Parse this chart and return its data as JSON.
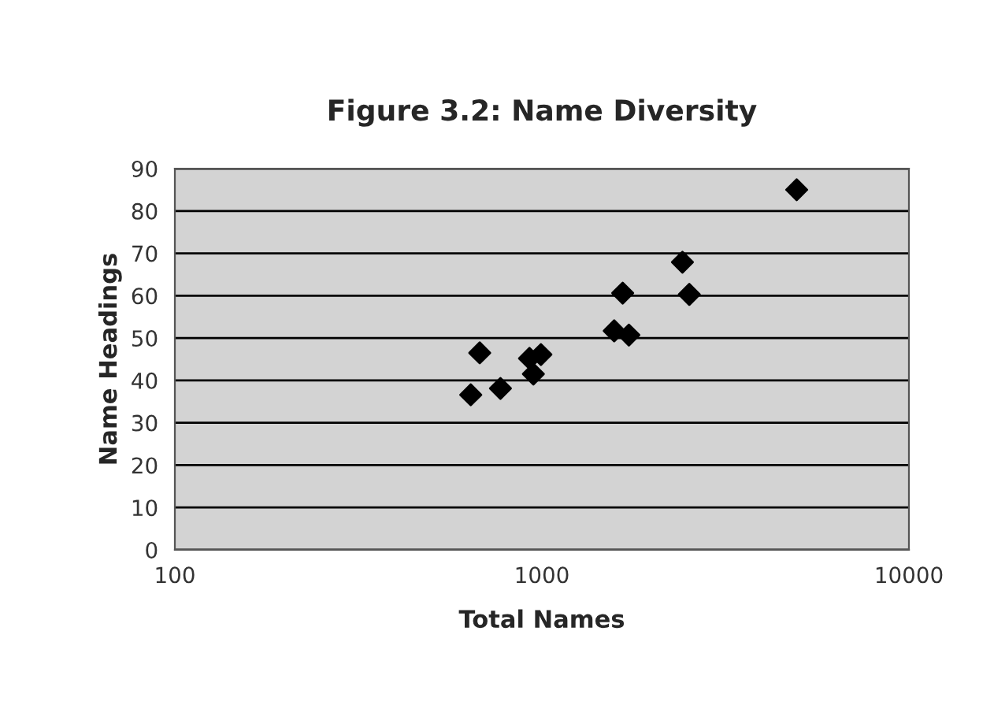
{
  "chart_data": {
    "type": "scatter",
    "title": "Figure 3.2: Name Diversity",
    "xlabel": "Total Names",
    "ylabel": "Name Headings",
    "x": [
      640,
      677,
      771,
      925,
      994,
      948,
      1574,
      1726,
      1660,
      2415,
      2521,
      4945
    ],
    "series": [
      {
        "color": "#000000",
        "values": [
          36.6,
          46.5,
          38.1,
          45.2,
          46.1,
          41.5,
          51.7,
          50.7,
          60.6,
          67.9,
          60.3,
          85.0
        ]
      }
    ],
    "log": "x",
    "xlim": [
      100,
      10000
    ],
    "xticks": [
      100,
      1000,
      10000
    ],
    "ylim": [
      0,
      90
    ],
    "yticks": [
      0,
      10,
      20,
      30,
      40,
      50,
      60,
      70,
      80,
      90
    ],
    "grid": "y",
    "marker": "diamond",
    "legend": false
  }
}
